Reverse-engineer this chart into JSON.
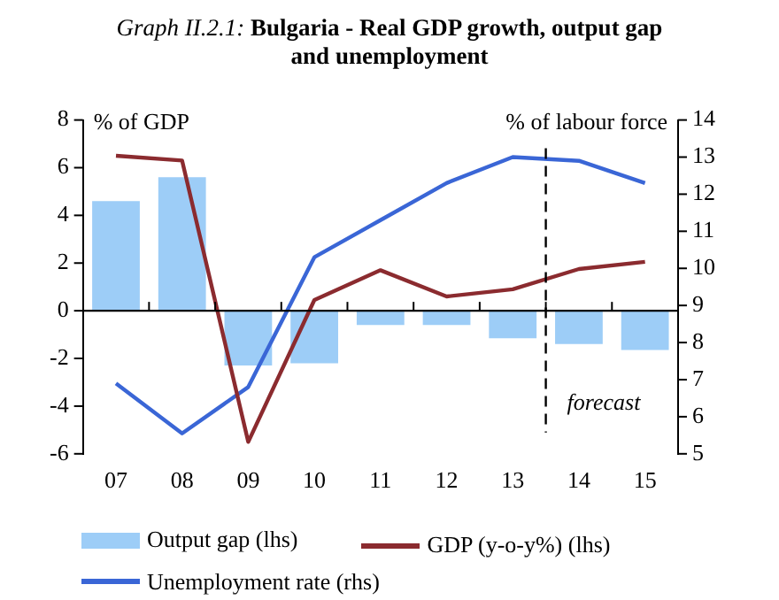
{
  "chart_data": {
    "type": "bar",
    "title": "Graph II.2.1: Bulgaria - Real GDP growth, output gap and unemployment",
    "ylabel": "% of GDP",
    "y2label": "% of labour force",
    "x": [
      2007,
      2008,
      2009,
      2010,
      2011,
      2012,
      2013,
      2014,
      2015
    ],
    "series": [
      {
        "name": "Output gap (lhs)",
        "color": "#9dcdf7",
        "values": [
          4.6,
          5.6,
          -2.3,
          -2.2,
          -0.6,
          -0.6,
          -1.15,
          -1.4,
          -1.65
        ]
      },
      {
        "name": "GDP (y-o-y%) (lhs)",
        "type": "line",
        "color": "#8b2b2f",
        "values": [
          6.5,
          6.3,
          -5.5,
          0.45,
          1.7,
          0.6,
          0.9,
          1.75,
          2.05
        ]
      },
      {
        "name": "Unemployment rate (rhs)",
        "type": "line",
        "axis": "y2",
        "color": "#3a66d6",
        "values": [
          6.9,
          5.55,
          6.8,
          10.3,
          11.3,
          12.3,
          13.0,
          12.9,
          12.3
        ]
      }
    ],
    "xlim": [
      2006.5,
      2015.5
    ],
    "xticks": [
      {
        "value": 2007,
        "label": "07"
      },
      {
        "value": 2008,
        "label": "08"
      },
      {
        "value": 2009,
        "label": "09"
      },
      {
        "value": 2010,
        "label": "10"
      },
      {
        "value": 2011,
        "label": "11"
      },
      {
        "value": 2012,
        "label": "12"
      },
      {
        "value": 2013,
        "label": "13"
      },
      {
        "value": 2014,
        "label": "14"
      },
      {
        "value": 2015,
        "label": "15"
      }
    ],
    "ylim": [
      -6,
      8
    ],
    "yticks": [
      -6,
      -4,
      -2,
      0,
      2,
      4,
      6,
      8
    ],
    "y2lim": [
      5,
      14
    ],
    "y2ticks": [
      5,
      6,
      7,
      8,
      9,
      10,
      11,
      12,
      13,
      14
    ],
    "ref_lines": [
      {
        "axis": "x",
        "value": 2013.5,
        "label": "forecast",
        "line_style": "dashed",
        "color": "#000000"
      },
      {
        "axis": "y",
        "value": 0,
        "line_style": "solid",
        "color": "#000000"
      }
    ],
    "grid": false,
    "legend": "bottom",
    "marker": "none",
    "line_style": "solid"
  }
}
